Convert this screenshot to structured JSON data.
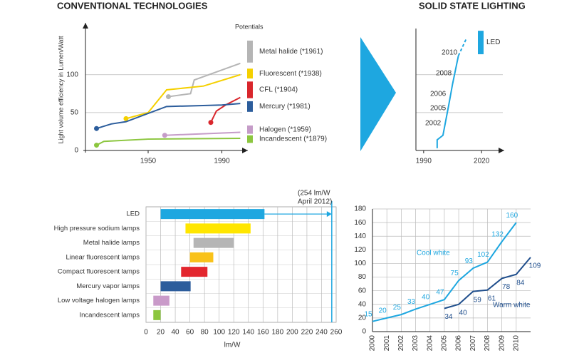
{
  "chart_data": [
    {
      "type": "line",
      "title": "CONVENTIONAL TECHNOLOGIES",
      "y_label": "Light volume efficiency in Lumen/Watt",
      "potentials_label": "Potentials",
      "xlim": [
        1916,
        2001
      ],
      "xticks": [
        1950,
        1990
      ],
      "ylim": [
        0,
        160
      ],
      "yticks": [
        0,
        50,
        100
      ],
      "grid": true,
      "series": [
        {
          "name": "Metal halide (*1961)",
          "color": "#b5b5b5",
          "x": [
            1961,
            1973,
            1975,
            2000
          ],
          "values": [
            71,
            75,
            93,
            115
          ],
          "potential": [
            116,
            145
          ]
        },
        {
          "name": "Fluorescent (*1938)",
          "color": "#f5d000",
          "x": [
            1938,
            1950,
            1960,
            1980,
            2000
          ],
          "values": [
            42,
            50,
            80,
            85,
            100
          ],
          "potential": [
            95,
            108
          ]
        },
        {
          "name": "CFL (*1904)",
          "color": "#d9262c",
          "x": [
            1984,
            1987,
            1992,
            2000
          ],
          "values": [
            37,
            52,
            60,
            70
          ],
          "potential": [
            69,
            91
          ]
        },
        {
          "name": "Mercury (*1981)",
          "color": "#2c5d9c",
          "x": [
            1922,
            1930,
            1938,
            1960,
            1990,
            2000
          ],
          "values": [
            29,
            35,
            38,
            58,
            60,
            62
          ],
          "potential": [
            51,
            65
          ]
        },
        {
          "name": "Halogen (*1959)",
          "color": "#c59cc8",
          "x": [
            1959,
            2000
          ],
          "values": [
            20,
            24
          ],
          "potential": [
            22,
            33
          ]
        },
        {
          "name": "Incandescent (*1879)",
          "color": "#8cc63f",
          "x": [
            1922,
            1926,
            1950,
            2000
          ],
          "values": [
            7,
            12,
            15,
            16
          ],
          "potential": [
            10,
            20
          ]
        }
      ]
    },
    {
      "type": "line",
      "title": "SOLID STATE LIGHTING",
      "xlim": [
        1986,
        2031
      ],
      "xticks": [
        1990,
        2020
      ],
      "ylim": [
        0,
        160
      ],
      "ygrid": [
        50,
        100
      ],
      "annotations": [
        "2002",
        "2005",
        "2006",
        "2008",
        "2010"
      ],
      "series": [
        {
          "name": "LED",
          "color": "#1ea7e0",
          "x": [
            1997,
            1997,
            2000,
            2003,
            2005,
            2008
          ],
          "values": [
            3,
            14,
            20,
            60,
            88,
            125
          ],
          "potential": [
            127,
            158
          ],
          "forecast": {
            "x": [
              2008,
              2012
            ],
            "values": [
              125,
              147
            ]
          }
        }
      ]
    },
    {
      "type": "range_bar",
      "x_label": "lm/W",
      "xlim": [
        0,
        260
      ],
      "xticks": [
        0,
        20,
        40,
        60,
        80,
        100,
        120,
        140,
        160,
        180,
        200,
        220,
        240,
        260
      ],
      "grid": true,
      "categories": [
        "LED",
        "High pressure  sodium lamps",
        "Metal halide lamps",
        "Linear fluorescent lamps",
        "Compact fluorescent lamps",
        "Mercury vapor lamps",
        "Low voltage halogen lamps",
        "Incandescent lamps"
      ],
      "ranges": [
        [
          20,
          162
        ],
        [
          54,
          143
        ],
        [
          65,
          120
        ],
        [
          60,
          92
        ],
        [
          48,
          84
        ],
        [
          20,
          61
        ],
        [
          10,
          32
        ],
        [
          10,
          20
        ]
      ],
      "colors": [
        "#1ea7e0",
        "#ffe600",
        "#b5b5b5",
        "#f9c21a",
        "#e3262e",
        "#2c5d9c",
        "#c99ac9",
        "#8cc63f"
      ],
      "record": {
        "value": 254,
        "label": "(254 lm/W",
        "note": "April 2012)"
      }
    },
    {
      "type": "line",
      "xlim": [
        2000,
        2011
      ],
      "xticks": [
        2000,
        2001,
        2002,
        2003,
        2004,
        2005,
        2006,
        2007,
        2008,
        2009,
        2010
      ],
      "ylim": [
        0,
        180
      ],
      "yticks": [
        0,
        20,
        40,
        60,
        80,
        100,
        120,
        140,
        160,
        180
      ],
      "grid": true,
      "series": [
        {
          "name": "Cool white",
          "color": "#1ea7e0",
          "x": [
            2000,
            2001,
            2002,
            2003,
            2004,
            2005,
            2006,
            2007,
            2008,
            2009,
            2010
          ],
          "values": [
            15,
            20,
            25,
            33,
            40,
            47,
            75,
            93,
            102,
            132,
            160
          ]
        },
        {
          "name": "Warm white",
          "color": "#1f4e8c",
          "x": [
            2005,
            2006,
            2007,
            2008,
            2009,
            2010,
            2011
          ],
          "values": [
            34,
            40,
            59,
            61,
            78,
            84,
            109
          ]
        }
      ]
    }
  ]
}
